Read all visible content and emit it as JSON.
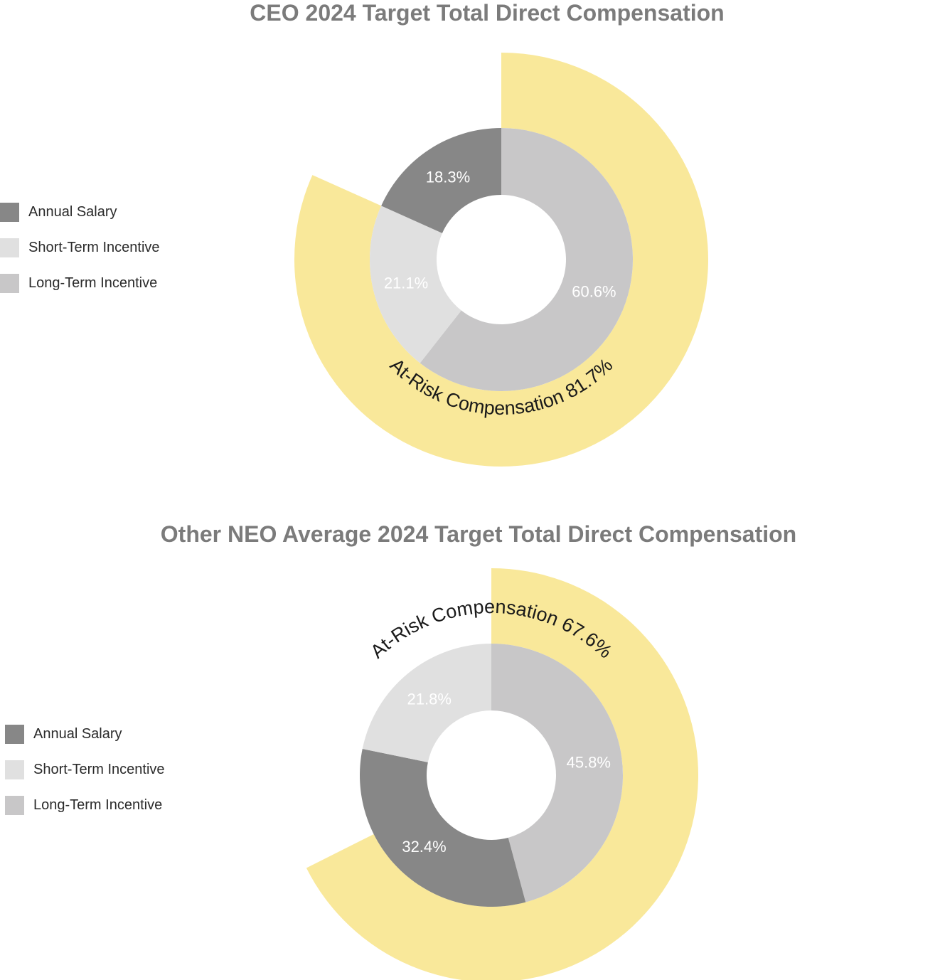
{
  "colors": {
    "annual_salary": "#878787",
    "short_term_incentive": "#e0e0e0",
    "long_term_incentive": "#c8c7c8",
    "at_risk": "#f9e89a"
  },
  "chart_data": [
    {
      "type": "pie",
      "title": "CEO 2024 Target Total Direct Compensation",
      "legend": [
        "Annual Salary",
        "Short-Term Incentive",
        "Long-Term Incentive"
      ],
      "legend_placement": "left",
      "slices": [
        {
          "name": "Annual Salary",
          "value": 18.3,
          "label": "18.3%"
        },
        {
          "name": "Short-Term Incentive",
          "value": 21.1,
          "label": "21.1%"
        },
        {
          "name": "Long-Term Incentive",
          "value": 60.6,
          "label": "60.6%"
        }
      ],
      "outer_ring": {
        "value": 81.7,
        "label": "At-Risk Compensation 81.7%"
      }
    },
    {
      "type": "pie",
      "title": "Other NEO Average 2024 Target Total Direct Compensation",
      "legend": [
        "Annual Salary",
        "Short-Term Incentive",
        "Long-Term Incentive"
      ],
      "legend_placement": "left",
      "slices": [
        {
          "name": "Annual Salary",
          "value": 32.4,
          "label": "32.4%"
        },
        {
          "name": "Short-Term Incentive",
          "value": 21.8,
          "label": "21.8%"
        },
        {
          "name": "Long-Term Incentive",
          "value": 45.8,
          "label": "45.8%"
        }
      ],
      "outer_ring": {
        "value": 67.6,
        "label": "At-Risk Compensation 67.6%"
      }
    }
  ]
}
